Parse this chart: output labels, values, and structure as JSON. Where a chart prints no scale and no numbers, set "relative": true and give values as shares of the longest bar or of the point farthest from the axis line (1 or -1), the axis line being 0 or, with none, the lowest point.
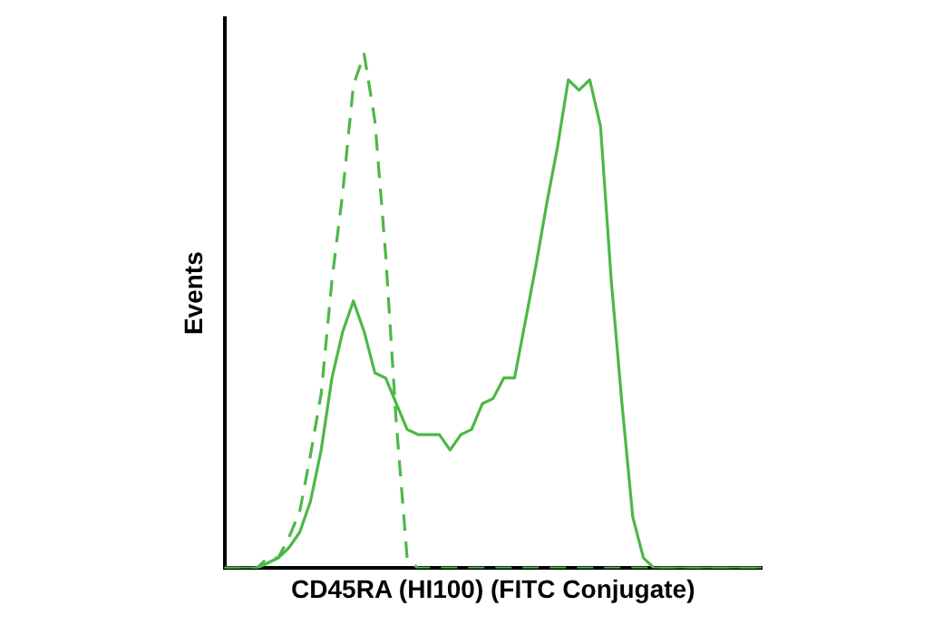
{
  "chart_data": {
    "type": "line",
    "relative": true,
    "xlabel": "CD45RA (HI100) (FITC Conjugate)",
    "ylabel": "Events",
    "grid": false,
    "legend": false,
    "marker": "none",
    "categories": [
      null,
      null,
      null,
      null,
      null,
      null,
      null,
      null,
      null,
      null,
      null,
      null,
      null,
      null,
      null,
      null,
      null,
      null,
      null,
      null,
      null,
      null,
      null,
      null,
      null,
      null,
      null,
      null,
      null,
      null,
      null,
      null,
      null,
      null,
      null,
      null,
      null,
      null,
      null,
      null,
      null,
      null,
      null,
      null,
      null,
      null,
      null,
      null,
      null,
      null,
      null
    ],
    "series": [
      {
        "color": "#4cb847",
        "line_style": "solid",
        "values": [
          0,
          0,
          0,
          0,
          0.01,
          0.02,
          0.04,
          0.07,
          0.13,
          0.23,
          0.37,
          0.46,
          0.52,
          0.46,
          0.38,
          0.37,
          0.32,
          0.27,
          0.26,
          0.26,
          0.26,
          0.23,
          0.26,
          0.27,
          0.32,
          0.33,
          0.37,
          0.37,
          0.48,
          0.59,
          0.71,
          0.82,
          0.95,
          0.93,
          0.95,
          0.86,
          0.56,
          0.32,
          0.1,
          0.02,
          0,
          0,
          0,
          0,
          0,
          0,
          0,
          0,
          0,
          0,
          0
        ]
      },
      {
        "color": "#4cb847",
        "line_style": "dashed",
        "values": [
          0,
          0,
          0,
          0,
          0.02,
          0.02,
          0.06,
          0.11,
          0.22,
          0.34,
          0.56,
          0.73,
          0.94,
          1,
          0.87,
          0.61,
          0.28,
          0.02,
          0,
          0,
          0,
          0,
          0,
          0,
          0,
          0,
          0,
          0,
          0,
          0,
          0,
          0,
          0,
          0,
          0,
          0,
          0,
          0,
          0,
          0,
          0,
          0,
          0,
          0,
          0,
          0,
          0,
          0,
          0,
          0,
          0
        ]
      }
    ]
  }
}
